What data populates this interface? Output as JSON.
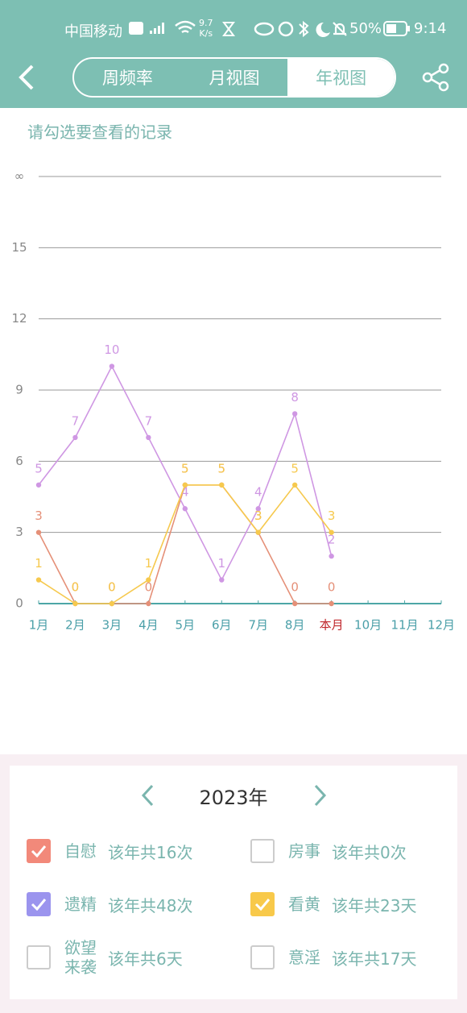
{
  "status_bar": {
    "carrier": "中国移动",
    "speed": "9.7",
    "speed_unit": "K/s",
    "battery": "50%",
    "time": "9:14"
  },
  "nav": {
    "tabs": [
      "周频率",
      "月视图",
      "年视图"
    ],
    "selected": 2
  },
  "hint": "请勾选要查看的记录",
  "chart_data": {
    "type": "line",
    "categories": [
      "1月",
      "2月",
      "3月",
      "4月",
      "5月",
      "6月",
      "7月",
      "8月",
      "本月",
      "10月",
      "11月",
      "12月"
    ],
    "highlight": {
      "index": 8,
      "color": "#c0282d"
    },
    "ylim": [
      0,
      18
    ],
    "yticks": [
      0,
      3,
      6,
      9,
      12,
      15,
      {
        "value": 18,
        "label": "∞"
      }
    ],
    "grid": true,
    "series": [
      {
        "name": "自慰",
        "color": "#e59078",
        "values": [
          3,
          0,
          0,
          0,
          5,
          5,
          3,
          0,
          0,
          null,
          null,
          null
        ]
      },
      {
        "name": "遗精",
        "color": "#cf97e3",
        "values": [
          5,
          7,
          10,
          7,
          4,
          1,
          4,
          8,
          2,
          null,
          null,
          null
        ]
      },
      {
        "name": "看黄",
        "color": "#f6c94e",
        "values": [
          1,
          0,
          0,
          1,
          5,
          5,
          3,
          5,
          3,
          null,
          null,
          null
        ]
      }
    ]
  },
  "panel": {
    "year": "2023年",
    "items": [
      {
        "label": "自慰",
        "summary": "该年共16次",
        "checked": true,
        "color": "#f2897a"
      },
      {
        "label": "房事",
        "summary": "该年共0次",
        "checked": false,
        "color": "#cccccc"
      },
      {
        "label": "遗精",
        "summary": "该年共48次",
        "checked": true,
        "color": "#9b94ee"
      },
      {
        "label": "看黄",
        "summary": "该年共23天",
        "checked": true,
        "color": "#f8c94a"
      },
      {
        "label": "欲望来袭",
        "summary": "该年共6天",
        "checked": false,
        "color": "#cccccc"
      },
      {
        "label": "意淫",
        "summary": "该年共17天",
        "checked": false,
        "color": "#cccccc"
      }
    ]
  }
}
